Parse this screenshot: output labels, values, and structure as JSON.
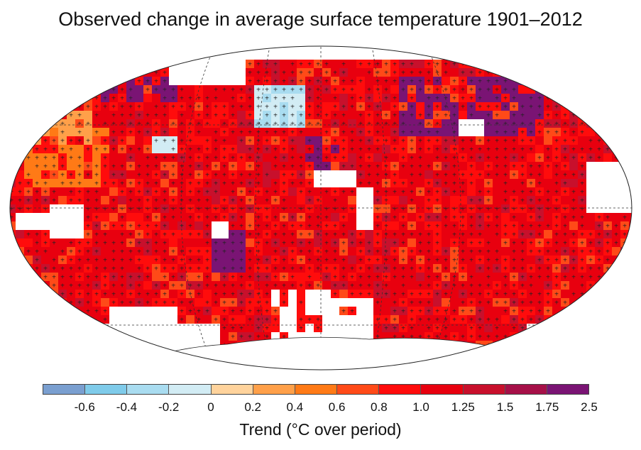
{
  "title": "Observed change in average surface temperature 1901–2012",
  "colorbar": {
    "label": "Trend (°C over period)",
    "ticks": [
      "-0.6",
      "-0.4",
      "-0.2",
      "0",
      "0.2",
      "0.4",
      "0.6",
      "0.8",
      "1.0",
      "1.25",
      "1.5",
      "1.75",
      "2.5"
    ],
    "colors": [
      "#7a9fd0",
      "#7fcbea",
      "#a9dcf0",
      "#d2ecf4",
      "#ffd39c",
      "#ffa049",
      "#ff7a16",
      "#ff4a18",
      "#ff0c0c",
      "#e8000f",
      "#c8102c",
      "#a61048",
      "#7a1474"
    ]
  },
  "legend_note": "+ marks: trend significant"
}
